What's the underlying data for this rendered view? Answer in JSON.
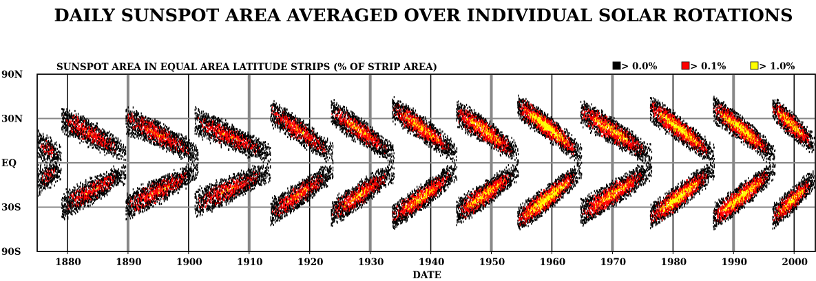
{
  "chart_data": {
    "type": "heatmap",
    "title": "DAILY SUNSPOT AREA AVERAGED OVER INDIVIDUAL SOLAR ROTATIONS",
    "subtitle": "SUNSPOT AREA IN EQUAL AREA LATITUDE STRIPS (% OF STRIP AREA)",
    "xlabel": "DATE",
    "ylabel": "",
    "xlim": [
      1875,
      2003.5
    ],
    "x_ticks": [
      1880,
      1890,
      1900,
      1910,
      1920,
      1930,
      1940,
      1950,
      1960,
      1970,
      1980,
      1990,
      2000
    ],
    "x_tick_labels": [
      "1880",
      "1890",
      "1900",
      "1910",
      "1920",
      "1930",
      "1940",
      "1950",
      "1960",
      "1970",
      "1980",
      "1990",
      "2000"
    ],
    "y_ticks": [
      {
        "sine_latitude": 1.0,
        "label": "90N"
      },
      {
        "sine_latitude": 0.5,
        "label": "30N"
      },
      {
        "sine_latitude": 0.0,
        "label": "EQ"
      },
      {
        "sine_latitude": -0.5,
        "label": "30S"
      },
      {
        "sine_latitude": -1.0,
        "label": "90S"
      }
    ],
    "y_scale": "sine of latitude (equal area)",
    "grid": true,
    "legend_position": "top-right",
    "legend": [
      {
        "label": "> 0.0%",
        "color": "#000000"
      },
      {
        "label": "> 0.1%",
        "color": "#ff0000"
      },
      {
        "label": "> 1.0%",
        "color": "#ffff00"
      }
    ],
    "cycles": [
      {
        "start": 1875.0,
        "end": 1878.9,
        "lat_max_deg": 12,
        "lat_min_deg": 4,
        "intensity": 0.35
      },
      {
        "start": 1879.0,
        "end": 1889.6,
        "lat_max_deg": 30,
        "lat_min_deg": 6,
        "intensity": 0.55
      },
      {
        "start": 1889.6,
        "end": 1901.5,
        "lat_max_deg": 30,
        "lat_min_deg": 5,
        "intensity": 0.6
      },
      {
        "start": 1901.0,
        "end": 1913.5,
        "lat_max_deg": 28,
        "lat_min_deg": 5,
        "intensity": 0.55
      },
      {
        "start": 1913.5,
        "end": 1923.8,
        "lat_max_deg": 35,
        "lat_min_deg": 5,
        "intensity": 0.65
      },
      {
        "start": 1923.5,
        "end": 1933.9,
        "lat_max_deg": 35,
        "lat_min_deg": 5,
        "intensity": 0.7
      },
      {
        "start": 1933.6,
        "end": 1944.3,
        "lat_max_deg": 38,
        "lat_min_deg": 5,
        "intensity": 0.8
      },
      {
        "start": 1944.2,
        "end": 1954.4,
        "lat_max_deg": 35,
        "lat_min_deg": 5,
        "intensity": 0.85
      },
      {
        "start": 1954.3,
        "end": 1964.9,
        "lat_max_deg": 40,
        "lat_min_deg": 5,
        "intensity": 1.0
      },
      {
        "start": 1964.7,
        "end": 1976.4,
        "lat_max_deg": 35,
        "lat_min_deg": 4,
        "intensity": 0.8
      },
      {
        "start": 1976.2,
        "end": 1986.8,
        "lat_max_deg": 38,
        "lat_min_deg": 4,
        "intensity": 0.95
      },
      {
        "start": 1986.6,
        "end": 1996.8,
        "lat_max_deg": 38,
        "lat_min_deg": 4,
        "intensity": 0.95
      },
      {
        "start": 1996.4,
        "end": 2003.5,
        "lat_max_deg": 38,
        "lat_min_deg": 10,
        "intensity": 0.85
      }
    ]
  }
}
